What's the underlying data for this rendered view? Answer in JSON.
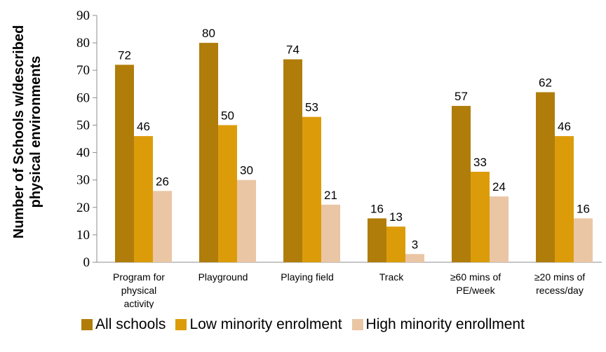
{
  "chart_data": {
    "type": "bar",
    "title": "",
    "xlabel": "",
    "ylabel_lines": [
      "Number of Schools w/described",
      "physical environments"
    ],
    "ylim": [
      0,
      90
    ],
    "yticks": [
      0,
      10,
      20,
      30,
      40,
      50,
      60,
      70,
      80,
      90
    ],
    "grid": false,
    "legend_position": "bottom",
    "categories": [
      [
        "Program for",
        "physical",
        "activity"
      ],
      [
        "Playground"
      ],
      [
        "Playing field"
      ],
      [
        "Track"
      ],
      [
        "≥60 mins of",
        "PE/week"
      ],
      [
        "≥20 mins of",
        "recess/day"
      ]
    ],
    "series": [
      {
        "name": "All schools",
        "color": "#B07D0A",
        "values": [
          72,
          80,
          74,
          16,
          57,
          62
        ]
      },
      {
        "name": "Low minority enrolment",
        "color": "#DC9C0A",
        "values": [
          46,
          50,
          53,
          13,
          33,
          46
        ]
      },
      {
        "name": "High minority enrollment",
        "color": "#EAC6A5",
        "values": [
          26,
          30,
          21,
          3,
          24,
          16
        ]
      }
    ]
  }
}
